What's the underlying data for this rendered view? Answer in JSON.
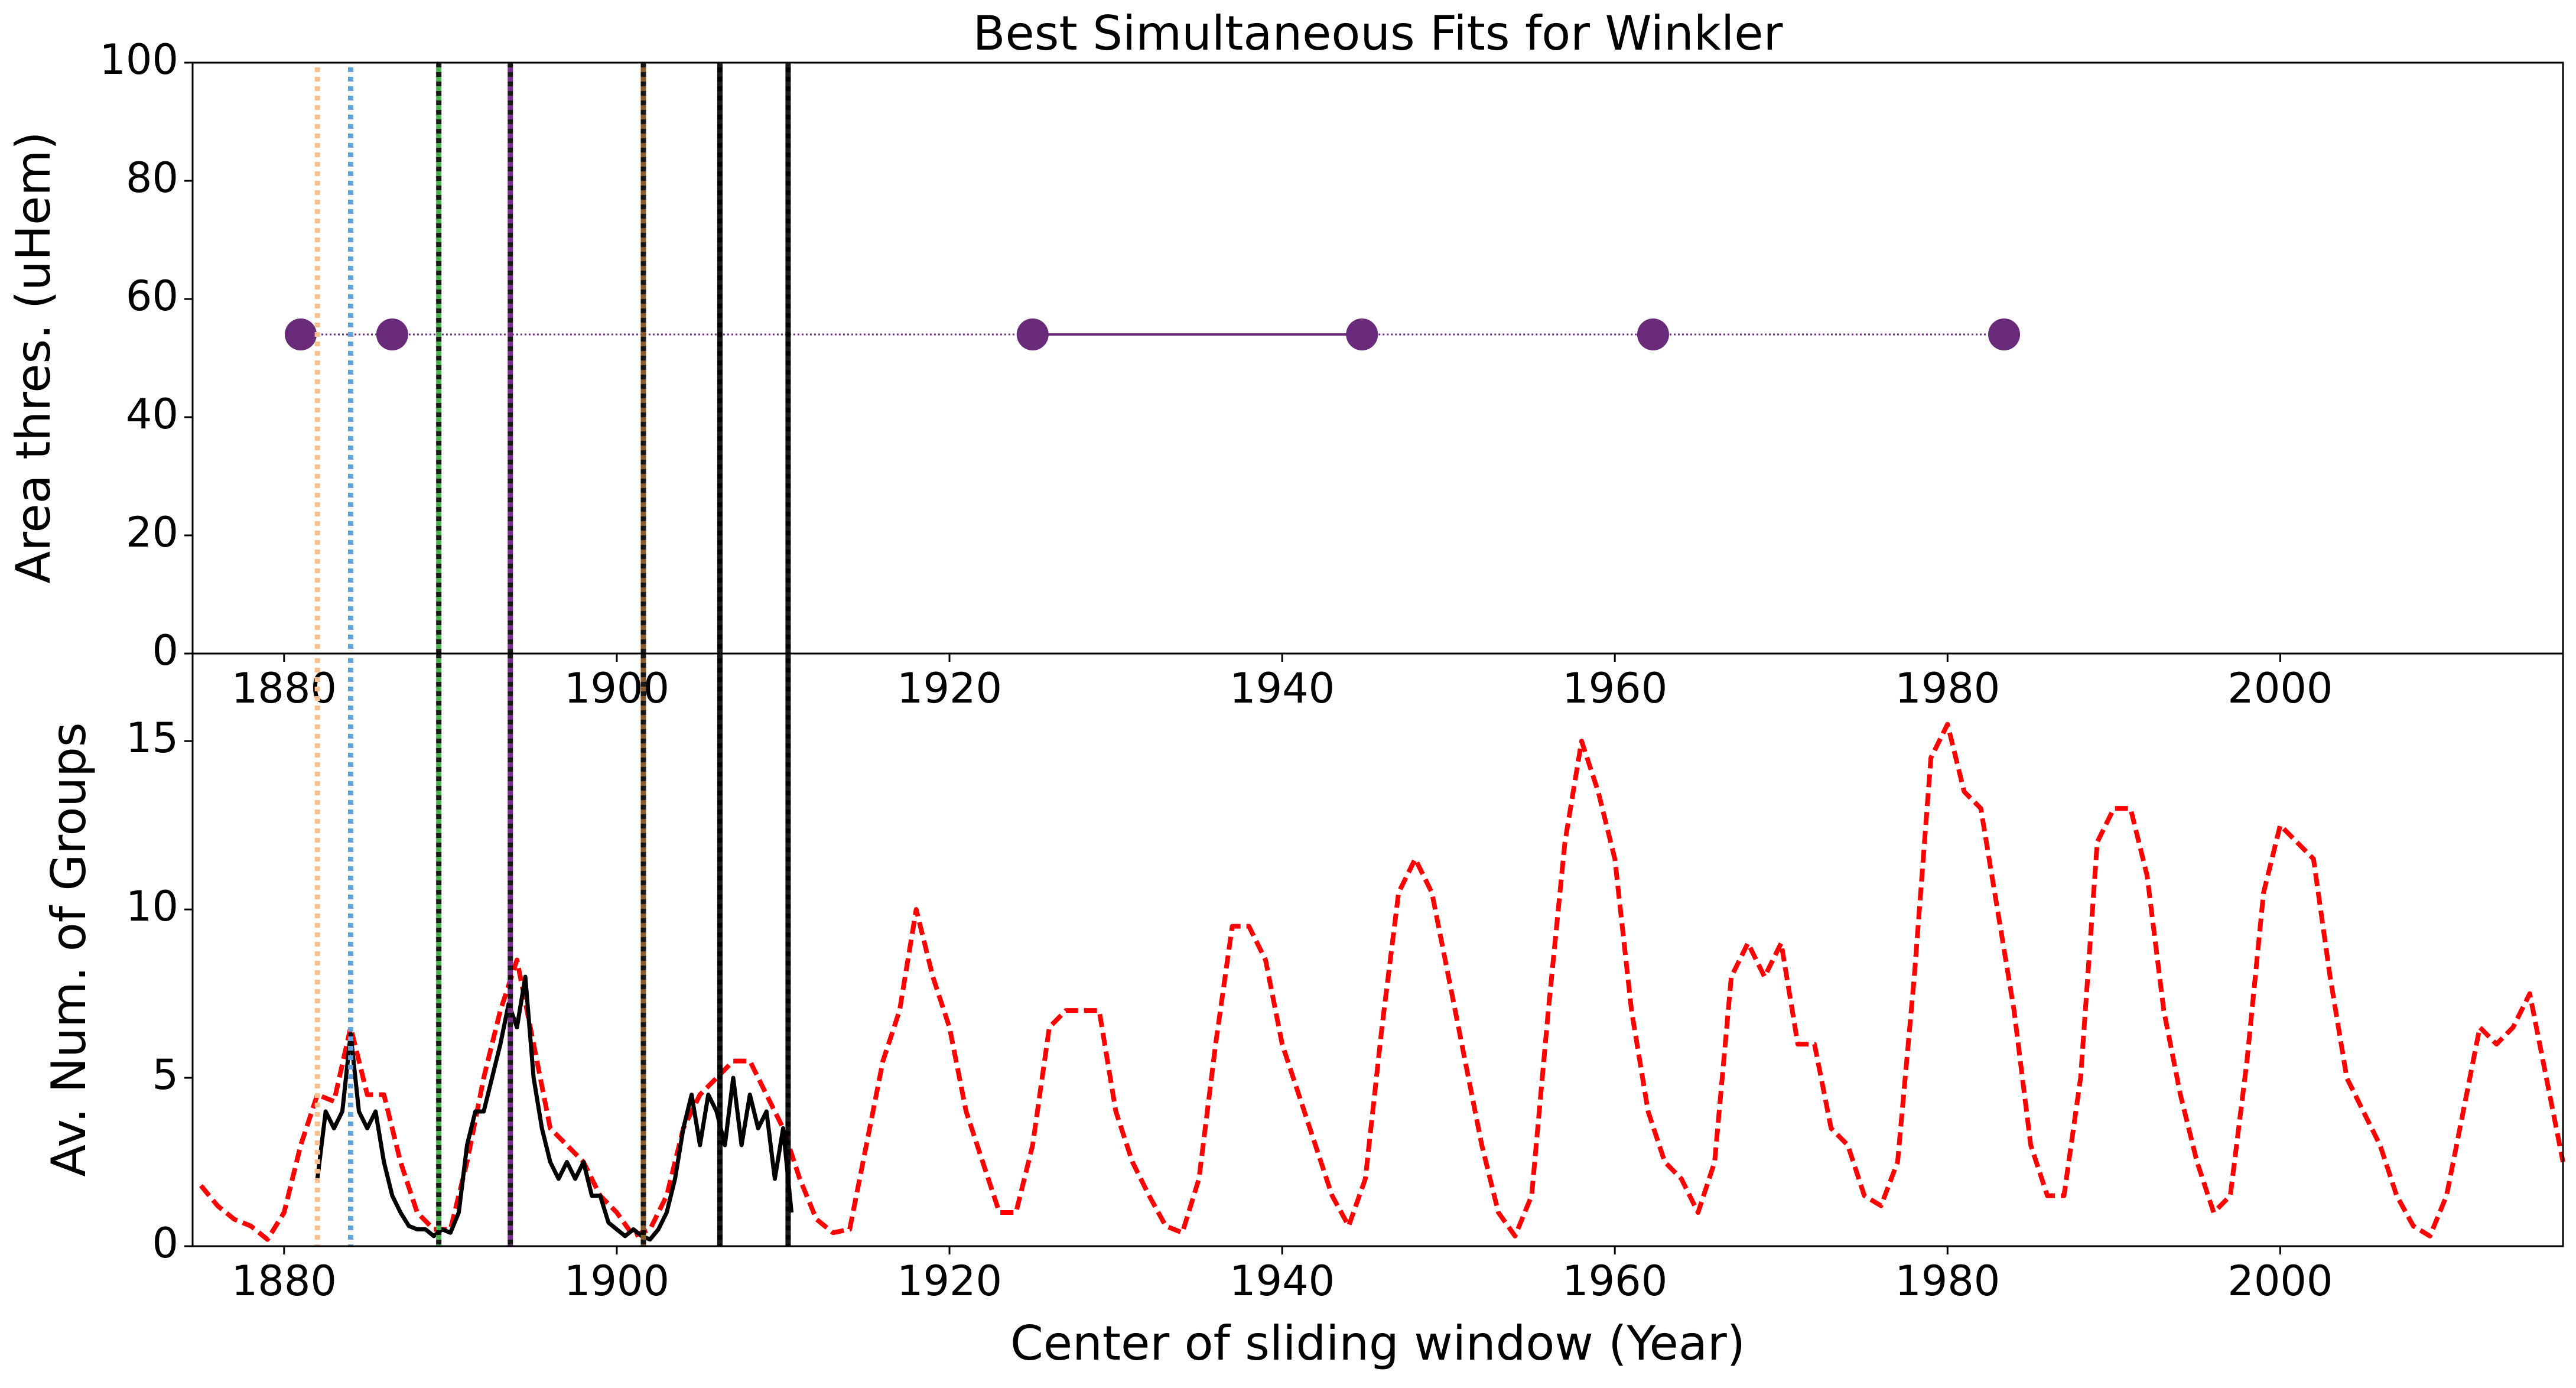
{
  "chart_data": [
    {
      "type": "scatter",
      "title": "Best Simultaneous Fits for Winkler",
      "ylabel": "Area thres. (uHem)",
      "x": [
        1881.0,
        1886.5,
        1925.0,
        1944.8,
        1962.3,
        1983.4
      ],
      "values": [
        54,
        54,
        54,
        54,
        54,
        54
      ],
      "color": "#6a2a7a",
      "segment_styles": [
        "dotted",
        "dotted",
        "solid",
        "dotted",
        "dotted"
      ],
      "xlim": [
        1874.5,
        2017
      ],
      "xticks": [
        1880,
        1900,
        1920,
        1940,
        1960,
        1980,
        2000
      ],
      "ylim": [
        0,
        100
      ],
      "yticks": [
        0,
        20,
        40,
        60,
        80,
        100
      ],
      "vlines": [
        {
          "x": 1882.0,
          "color": "#f9c08f"
        },
        {
          "x": 1884.0,
          "color": "#5fa2dd"
        },
        {
          "x": 1889.3,
          "color": "#4caf50"
        },
        {
          "x": 1893.6,
          "color": "#7b2d8b"
        },
        {
          "x": 1901.6,
          "color": "#8b5a2b"
        },
        {
          "x": 1906.2,
          "color": "#000000"
        },
        {
          "x": 1910.3,
          "color": "#000000"
        }
      ]
    },
    {
      "type": "line",
      "xlabel": "Center of sliding window (Year)",
      "ylabel": "Av. Num. of Groups",
      "xlim": [
        1874.5,
        2017
      ],
      "xticks": [
        1880,
        1900,
        1920,
        1940,
        1960,
        1980,
        2000
      ],
      "ylim": [
        0,
        17.6
      ],
      "yticks": [
        0,
        5,
        10,
        15
      ],
      "series": [
        {
          "color": "#ff0000",
          "style": "dashed",
          "x": [
            1875,
            1876,
            1877,
            1878,
            1879,
            1880,
            1881,
            1882,
            1883,
            1884,
            1885,
            1886,
            1887,
            1888,
            1889,
            1890,
            1891,
            1892,
            1893,
            1894,
            1895,
            1896,
            1897,
            1898,
            1899,
            1900,
            1901,
            1902,
            1903,
            1904,
            1905,
            1906,
            1907,
            1908,
            1909,
            1910,
            1911,
            1912,
            1913,
            1914,
            1915,
            1916,
            1917,
            1918,
            1919,
            1920,
            1921,
            1922,
            1923,
            1924,
            1925,
            1926,
            1927,
            1928,
            1929,
            1930,
            1931,
            1932,
            1933,
            1934,
            1935,
            1936,
            1937,
            1938,
            1939,
            1940,
            1941,
            1942,
            1943,
            1944,
            1945,
            1946,
            1947,
            1948,
            1949,
            1950,
            1951,
            1952,
            1953,
            1954,
            1955,
            1956,
            1957,
            1958,
            1959,
            1960,
            1961,
            1962,
            1963,
            1964,
            1965,
            1966,
            1967,
            1968,
            1969,
            1970,
            1971,
            1972,
            1973,
            1974,
            1975,
            1976,
            1977,
            1978,
            1979,
            1980,
            1981,
            1982,
            1983,
            1984,
            1985,
            1986,
            1987,
            1988,
            1989,
            1990,
            1991,
            1992,
            1993,
            1994,
            1995,
            1996,
            1997,
            1998,
            1999,
            2000,
            2001,
            2002,
            2003,
            2004,
            2005,
            2006,
            2007,
            2008,
            2009,
            2010,
            2011,
            2012,
            2013,
            2014,
            2015,
            2016,
            2017
          ],
          "values": [
            1.8,
            1.2,
            0.8,
            0.6,
            0.2,
            1.0,
            3.0,
            4.5,
            4.3,
            6.5,
            4.5,
            4.5,
            2.5,
            1.0,
            0.5,
            0.5,
            2.5,
            5.0,
            7.0,
            8.5,
            6.0,
            3.5,
            3.0,
            2.5,
            1.5,
            1.0,
            0.3,
            0.5,
            1.5,
            3.5,
            4.5,
            5.0,
            5.5,
            5.5,
            4.5,
            3.5,
            2.0,
            0.8,
            0.4,
            0.5,
            3.0,
            5.5,
            7.0,
            10.0,
            8.0,
            6.5,
            4.0,
            2.5,
            1.0,
            1.0,
            3.0,
            6.5,
            7.0,
            7.0,
            7.0,
            4.0,
            2.5,
            1.5,
            0.6,
            0.4,
            2.0,
            6.0,
            9.5,
            9.5,
            8.5,
            6.0,
            4.5,
            3.0,
            1.5,
            0.6,
            2.0,
            6.5,
            10.5,
            11.5,
            10.5,
            8.0,
            5.5,
            3.0,
            1.0,
            0.3,
            1.5,
            7.0,
            12.0,
            15.0,
            13.5,
            11.5,
            7.0,
            4.0,
            2.5,
            2.0,
            1.0,
            2.5,
            8.0,
            9.0,
            8.0,
            9.0,
            6.0,
            6.0,
            3.5,
            3.0,
            1.5,
            1.2,
            2.5,
            8.0,
            14.5,
            15.5,
            13.5,
            13.0,
            10.0,
            7.0,
            3.0,
            1.5,
            1.5,
            5.0,
            12.0,
            13.0,
            13.0,
            11.0,
            7.0,
            4.5,
            2.5,
            1.0,
            1.5,
            5.5,
            10.5,
            12.5,
            12.0,
            11.5,
            8.0,
            5.0,
            4.0,
            3.0,
            1.5,
            0.6,
            0.3,
            1.5,
            4.0,
            6.5,
            6.0,
            6.5,
            7.5,
            5.0,
            2.5
          ]
        },
        {
          "color": "#000000",
          "style": "solid",
          "x": [
            1882,
            1882.5,
            1883,
            1883.5,
            1884,
            1884.5,
            1885,
            1885.5,
            1886,
            1886.5,
            1887,
            1887.5,
            1888,
            1888.5,
            1889,
            1889.5,
            1890,
            1890.5,
            1891,
            1891.5,
            1892,
            1892.5,
            1893,
            1893.5,
            1894,
            1894.5,
            1895,
            1895.5,
            1896,
            1896.5,
            1897,
            1897.5,
            1898,
            1898.5,
            1899,
            1899.5,
            1900,
            1900.5,
            1901,
            1901.5,
            1902,
            1902.5,
            1903,
            1903.5,
            1904,
            1904.5,
            1905,
            1905.5,
            1906,
            1906.5,
            1907,
            1907.5,
            1908,
            1908.5,
            1909,
            1909.5,
            1910,
            1910.5
          ],
          "values": [
            2.0,
            4.0,
            3.5,
            4.0,
            6.3,
            4.0,
            3.5,
            4.0,
            2.5,
            1.5,
            1.0,
            0.6,
            0.5,
            0.5,
            0.3,
            0.5,
            0.4,
            1.0,
            3.0,
            4.0,
            4.0,
            5.0,
            6.0,
            7.2,
            6.5,
            8.0,
            5.0,
            3.5,
            2.5,
            2.0,
            2.5,
            2.0,
            2.5,
            1.5,
            1.5,
            0.7,
            0.5,
            0.3,
            0.5,
            0.3,
            0.2,
            0.5,
            1.0,
            2.0,
            3.5,
            4.5,
            3.0,
            4.5,
            4.0,
            3.0,
            5.0,
            3.0,
            4.5,
            3.5,
            4.0,
            2.0,
            3.5,
            1.0
          ]
        }
      ]
    }
  ]
}
